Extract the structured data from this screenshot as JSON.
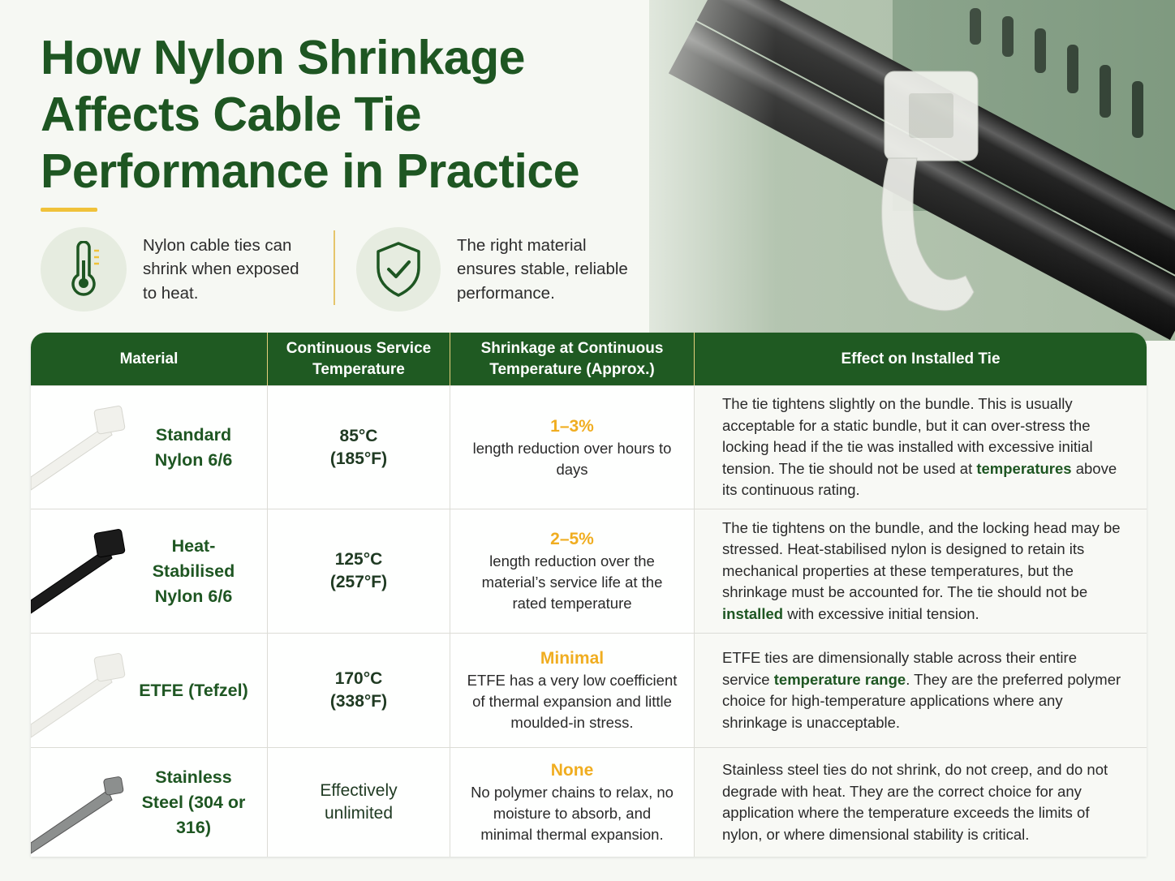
{
  "header": {
    "title_lines": [
      "How Nylon Shrinkage",
      "Affects Cable Tie",
      "Performance in Practice"
    ]
  },
  "highlights": [
    {
      "text": "Nylon cable ties can shrink when exposed to heat."
    },
    {
      "text": "The right material ensures stable, reliable performance."
    }
  ],
  "table": {
    "columns": [
      "Material",
      "Continuous Service Temperature",
      "Shrinkage at Continuous Temperature (Approx.)",
      "Effect on Installed Tie"
    ],
    "rows": [
      {
        "material": "Standard Nylon 6/6",
        "temperature": "85°C (185°F)",
        "shrinkage_amount": "1–3%",
        "shrinkage_note": "length reduction over hours to days",
        "effect": [
          "The tie tightens slightly on the bundle. This is usually acceptable for a static bundle, but it can over-stress the locking head if the tie was installed with excessive initial tension. The tie should not be used at ",
          "temperatures",
          " above its continuous rating."
        ]
      },
      {
        "material": "Heat-Stabilised Nylon 6/6",
        "temperature": "125°C (257°F)",
        "shrinkage_amount": "2–5%",
        "shrinkage_note": "length reduction over the material’s service life at the rated temperature",
        "effect": [
          "The tie tightens on the bundle, and the locking head may be stressed. Heat-stabilised nylon is designed to retain its mechanical properties at these temperatures, but the shrinkage must be accounted for. The tie should not be ",
          "installed",
          " with excessive initial tension."
        ]
      },
      {
        "material": "ETFE (Tefzel)",
        "temperature": "170°C (338°F)",
        "shrinkage_amount": "Minimal",
        "shrinkage_note": "ETFE has a very low coefficient of thermal expansion and little moulded-in stress.",
        "effect": [
          "ETFE ties are dimensionally stable across their entire service ",
          "temperature range",
          ". They are the preferred polymer choice for high-temperature applications where any shrinkage is unacceptable."
        ]
      },
      {
        "material": "Stainless Steel (304 or 316)",
        "temperature": "Effectively unlimited",
        "shrinkage_amount": "None",
        "shrinkage_note": "No polymer chains to relax, no moisture to absorb, and minimal thermal expansion.",
        "effect": [
          "Stainless steel ties do not shrink, do not creep, and do not degrade with heat. They are the correct choice for any application where the temperature exceeds the limits of nylon, or where dimensional stability is critical."
        ]
      }
    ]
  }
}
